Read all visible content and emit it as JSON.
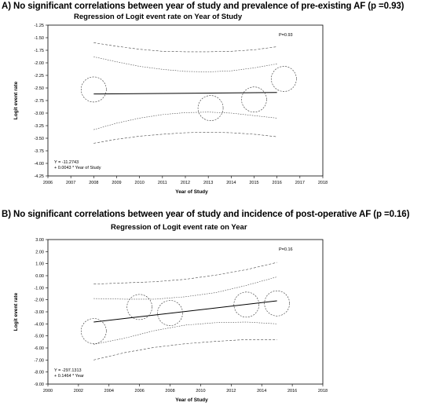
{
  "figure": {
    "panel_a_heading": "A)    No significant correlations between year of study and prevalence of pre-existing AF (p =0.93)",
    "panel_b_heading": "B) No significant correlations between year of study and incidence of post-operative AF (p =0.16)"
  },
  "chart_data": [
    {
      "type": "scatter",
      "title": "Regression of Logit event rate on Year of Study",
      "xlabel": "Year of Study",
      "ylabel": "Logit event rate",
      "xlim": [
        2006,
        2018
      ],
      "ylim": [
        -4.25,
        -1.25
      ],
      "x_ticks": [
        2006,
        2007,
        2008,
        2009,
        2010,
        2011,
        2012,
        2013,
        2014,
        2015,
        2016,
        2017,
        2018
      ],
      "y_ticks": [
        -1.25,
        -1.5,
        -1.75,
        -2.0,
        -2.25,
        -2.5,
        -2.75,
        -3.0,
        -3.25,
        -3.5,
        -3.75,
        -4.0,
        -4.25
      ],
      "x_tick_labels": [
        "2006",
        "2007",
        "2008",
        "2009",
        "2010",
        "2011",
        "2012",
        "2013",
        "2014",
        "2015",
        "2016",
        "2017",
        "2018"
      ],
      "y_tick_labels": [
        "-1.25",
        "-1.50",
        "-1.75",
        "-2.00",
        "-2.25",
        "-2.50",
        "-2.75",
        "-3.00",
        "-3.25",
        "-3.50",
        "-3.75",
        "-4.00",
        "-4.25"
      ],
      "points": [
        {
          "x": 2008.0,
          "y": -2.53
        },
        {
          "x": 2013.1,
          "y": -2.9
        },
        {
          "x": 2015.0,
          "y": -2.73
        },
        {
          "x": 2016.3,
          "y": -2.32
        }
      ],
      "regression": {
        "x": [
          2008,
          2016
        ],
        "y": [
          -2.62,
          -2.59
        ]
      },
      "ci_inner": {
        "x": [
          2008,
          2009,
          2010,
          2011,
          2012,
          2013,
          2014,
          2015,
          2016
        ],
        "upper": [
          -1.88,
          -1.98,
          -2.07,
          -2.13,
          -2.17,
          -2.18,
          -2.16,
          -2.1,
          -2.02
        ],
        "lower": [
          -3.33,
          -3.2,
          -3.1,
          -3.03,
          -2.99,
          -2.98,
          -3.0,
          -3.05,
          -3.1
        ]
      },
      "ci_outer": {
        "x": [
          2008,
          2009,
          2010,
          2011,
          2012,
          2013,
          2014,
          2015,
          2016
        ],
        "upper": [
          -1.6,
          -1.67,
          -1.73,
          -1.77,
          -1.78,
          -1.78,
          -1.77,
          -1.74,
          -1.68
        ],
        "lower": [
          -3.6,
          -3.52,
          -3.46,
          -3.42,
          -3.39,
          -3.38,
          -3.39,
          -3.42,
          -3.47
        ]
      },
      "p_label": "P=0.93",
      "equation_line1": "Y = -11.2743",
      "equation_line2": "+ 0.0043 * Year of Study"
    },
    {
      "type": "scatter",
      "title": "Regression of Logit event rate on Year",
      "xlabel": "Year of Study",
      "ylabel": "Logit event rate",
      "xlim": [
        2000,
        2018
      ],
      "ylim": [
        -9.0,
        3.0
      ],
      "x_ticks": [
        2000,
        2002,
        2004,
        2006,
        2008,
        2010,
        2012,
        2014,
        2016,
        2018
      ],
      "y_ticks": [
        3,
        2,
        1,
        0,
        -1,
        -2,
        -3,
        -4,
        -5,
        -6,
        -7,
        -8,
        -9
      ],
      "x_tick_labels": [
        "2000",
        "2002",
        "2004",
        "2006",
        "2008",
        "2010",
        "2012",
        "2014",
        "2016",
        "2018"
      ],
      "y_tick_labels": [
        "3.00",
        "2.00",
        "1.00",
        "0.00",
        "-1.00",
        "-2.00",
        "-3.00",
        "-4.00",
        "-5.00",
        "-6.00",
        "-7.00",
        "-8.00",
        "-9.00"
      ],
      "points": [
        {
          "x": 2003.0,
          "y": -4.6
        },
        {
          "x": 2006.0,
          "y": -2.6
        },
        {
          "x": 2008.0,
          "y": -3.1
        },
        {
          "x": 2013.0,
          "y": -2.4
        },
        {
          "x": 2015.0,
          "y": -2.3
        }
      ],
      "regression": {
        "x": [
          2003,
          2015
        ],
        "y": [
          -3.85,
          -2.09
        ]
      },
      "ci_inner": {
        "x": [
          2003,
          2005,
          2007,
          2009,
          2011,
          2013,
          2015
        ],
        "upper": [
          -1.9,
          -1.95,
          -1.95,
          -1.75,
          -1.4,
          -0.8,
          -0.1
        ],
        "lower": [
          -5.7,
          -5.2,
          -4.55,
          -4.1,
          -3.9,
          -3.85,
          -4.0
        ]
      },
      "ci_outer": {
        "x": [
          2003,
          2005,
          2007,
          2009,
          2011,
          2013,
          2015
        ],
        "upper": [
          -0.7,
          -0.6,
          -0.5,
          -0.3,
          0.05,
          0.5,
          1.1
        ],
        "lower": [
          -7.0,
          -6.4,
          -5.95,
          -5.65,
          -5.45,
          -5.3,
          -5.3
        ]
      },
      "p_label": "P=0.16",
      "equation_line1": "Y = -297.1313",
      "equation_line2": "+ 0.1464 * Year"
    }
  ]
}
